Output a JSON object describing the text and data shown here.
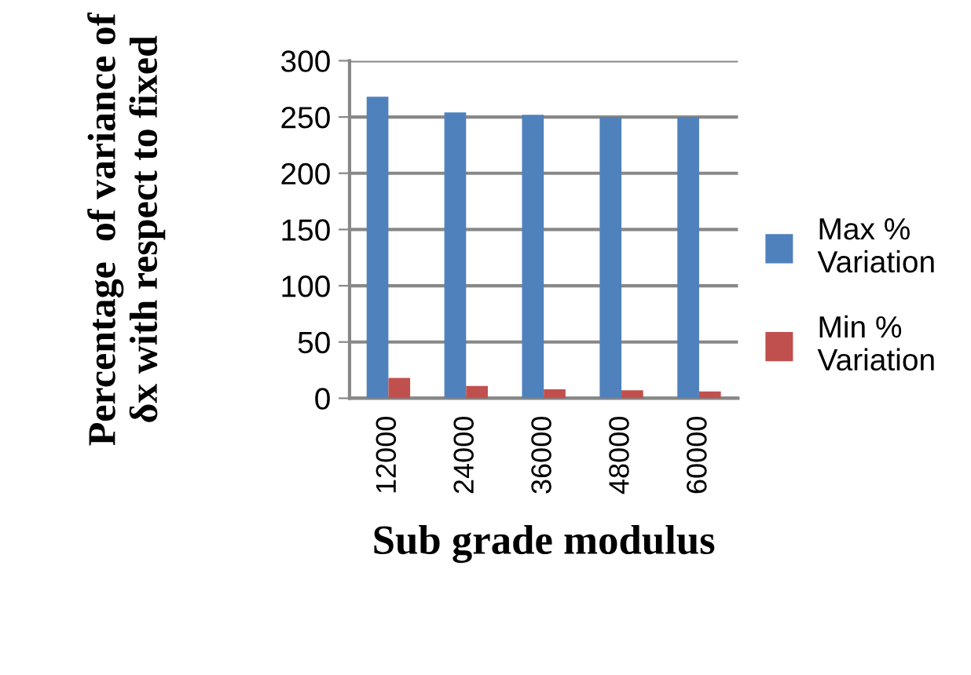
{
  "chart_data": {
    "type": "bar",
    "xlabel": "Sub grade modulus",
    "ylabel": "Percentage  of variance of δx with respect to fixed",
    "categories": [
      "12000",
      "24000",
      "36000",
      "48000",
      "60000"
    ],
    "series": [
      {
        "name": "Max % Variation",
        "color": "#4f81bd",
        "values": [
          268,
          254,
          252,
          250,
          250
        ]
      },
      {
        "name": "Min % Variation",
        "color": "#c0504d",
        "values": [
          18,
          11,
          8,
          7,
          6
        ]
      }
    ],
    "ylim": [
      0,
      300
    ],
    "yticks": [
      0,
      50,
      100,
      150,
      200,
      250,
      300
    ],
    "grid": "y",
    "legend": "right"
  }
}
